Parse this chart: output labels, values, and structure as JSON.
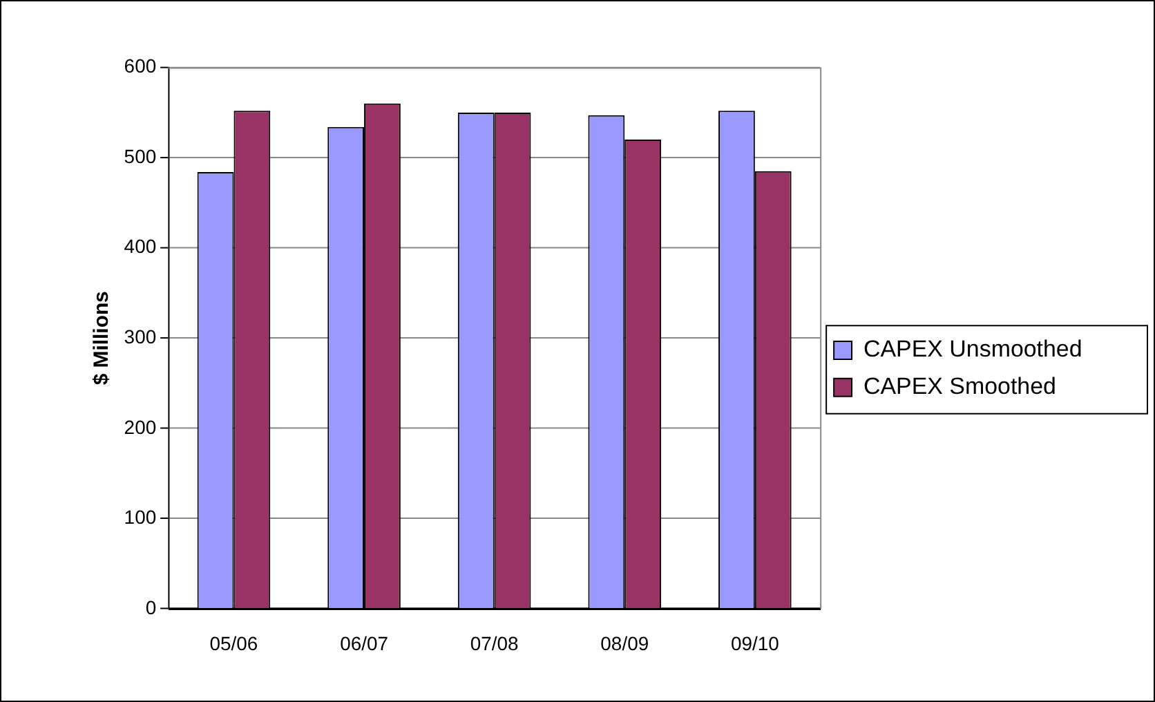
{
  "chart_data": {
    "type": "bar",
    "ylabel": "$ Millions",
    "categories": [
      "05/06",
      "06/07",
      "07/08",
      "08/09",
      "09/10"
    ],
    "series": [
      {
        "name": "CAPEX Unsmoothed",
        "color": "#9999ff",
        "values": [
          484,
          534,
          550,
          547,
          552
        ]
      },
      {
        "name": "CAPEX Smoothed",
        "color": "#993366",
        "values": [
          552,
          560,
          550,
          520,
          485
        ]
      }
    ],
    "ylim": [
      0,
      600
    ],
    "yticks": [
      0,
      100,
      200,
      300,
      400,
      500,
      600
    ],
    "grid": "y",
    "legend": "right"
  }
}
